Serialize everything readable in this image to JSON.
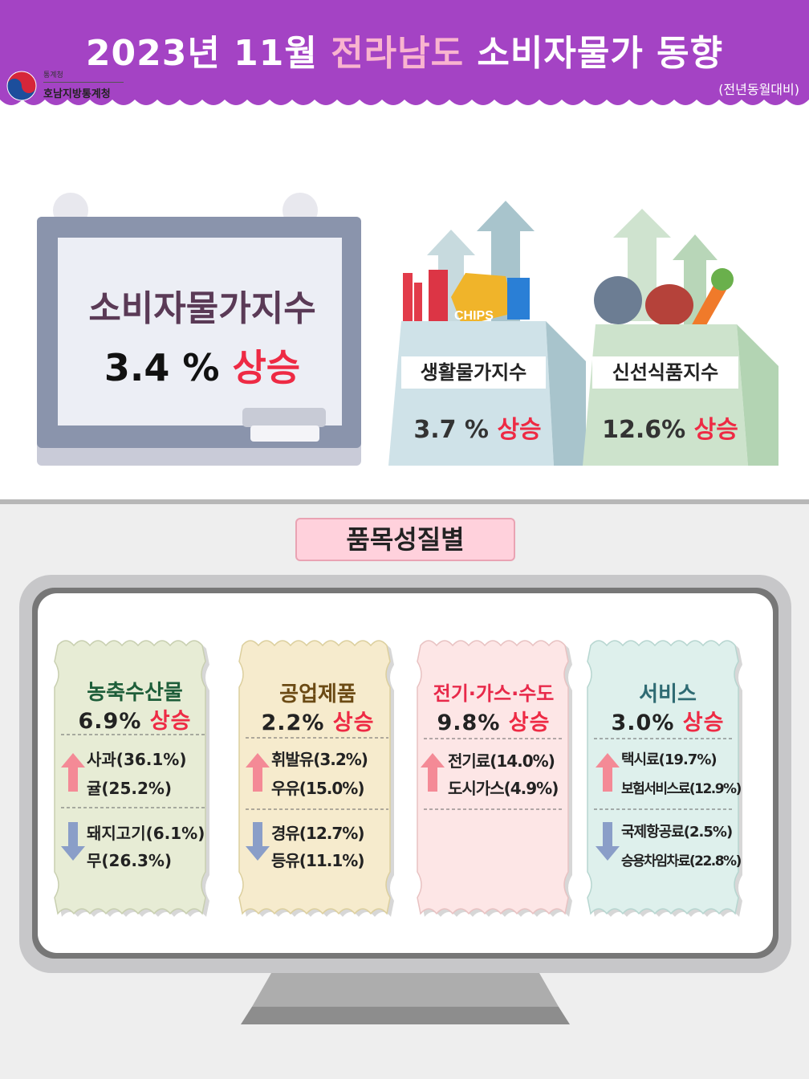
{
  "header": {
    "title_part1": "2023년 11월 ",
    "title_region": "전라남도",
    "title_part2": " 소비자물가 동향",
    "subtitle": "(전년동월대비)",
    "logo_small": "통계청",
    "logo_main": "호남지방통계청"
  },
  "colors": {
    "header_purple": "#a443c4",
    "accent_pink": "#f9b4cf",
    "rise_red": "#ee2a44"
  },
  "main_index": {
    "label": "소비자물가지수",
    "value": "3.4 %",
    "direction": "상승"
  },
  "sub_indices": [
    {
      "label": "생활물가지수",
      "value": "3.7 %",
      "direction": "상승"
    },
    {
      "label": "신선식품지수",
      "value": "12.6%",
      "direction": "상승"
    }
  ],
  "bag_decor": {
    "chips_label": "CHIPS"
  },
  "section": {
    "title": "품목성질별"
  },
  "categories": [
    {
      "name": "농축수산물",
      "rate": "6.9%",
      "direction": "상승",
      "color": "#1e5e3a",
      "rising": [
        "사과(36.1%)",
        "귤(25.2%)"
      ],
      "falling": [
        "돼지고기(6.1%)",
        "무(26.3%)"
      ]
    },
    {
      "name": "공업제품",
      "rate": "2.2%",
      "direction": "상승",
      "color": "#6b4a14",
      "rising": [
        "휘발유(3.2%)",
        "우유(15.0%)"
      ],
      "falling": [
        "경유(12.7%)",
        "등유(11.1%)"
      ]
    },
    {
      "name": "전기·가스·수도",
      "rate": "9.8%",
      "direction": "상승",
      "color": "#e8294a",
      "rising": [
        "전기료(14.0%)",
        "도시가스(4.9%)"
      ],
      "falling": []
    },
    {
      "name": "서비스",
      "rate": "3.0%",
      "direction": "상승",
      "color": "#2f6b73",
      "rising": [
        "택시료(19.7%)",
        "보험서비스료(12.9%)"
      ],
      "falling": [
        "국제항공료(2.5%)",
        "승용차임차료(22.8%)"
      ]
    }
  ]
}
